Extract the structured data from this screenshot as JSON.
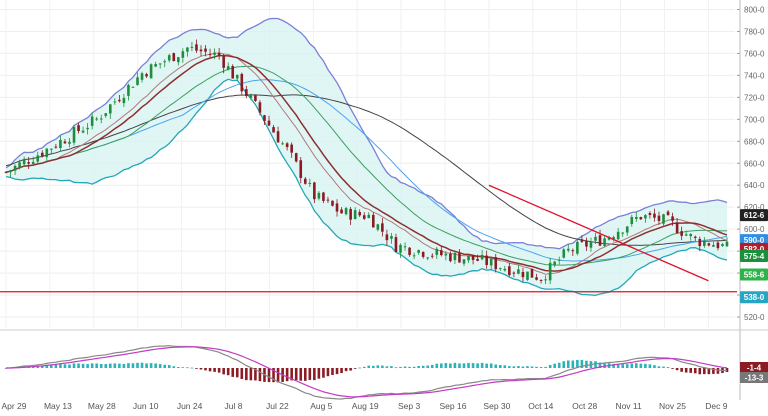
{
  "chart_data": {
    "type": "candlestick",
    "x_ticks": [
      "Apr 29",
      "May 13",
      "May 28",
      "Jun 10",
      "Jun 24",
      "Jul 8",
      "Jul 22",
      "Aug 5",
      "Aug 19",
      "Sep 3",
      "Sep 16",
      "Sep 30",
      "Oct 14",
      "Oct 28",
      "Nov 11",
      "Nov 25",
      "Dec 9"
    ],
    "y_ticks": [
      "800-0",
      "780-0",
      "760-0",
      "740-0",
      "720-0",
      "700-0",
      "680-0",
      "660-0",
      "640-0",
      "620-0",
      "600-0",
      "580-0",
      "560-0",
      "540-0",
      "520-0"
    ],
    "ylim": [
      510,
      805
    ],
    "grid": true,
    "price_labels": [
      {
        "text": "612-6",
        "value": 612.75,
        "color": "#222222"
      },
      {
        "text": "590-0",
        "value": 590.0,
        "color": "#2f8de4"
      },
      {
        "text": "582-0",
        "value": 582.0,
        "color": "#b0202c"
      },
      {
        "text": "575-4",
        "value": 575.5,
        "color": "#1c8f3c"
      },
      {
        "text": "558-6",
        "value": 558.75,
        "color": "#2eb34a"
      },
      {
        "text": "538-0",
        "value": 538.0,
        "color": "#26a6c2"
      }
    ],
    "horizontal_line": {
      "value": 543.0,
      "color": "#e0102c"
    },
    "trendline": {
      "start_date": "Sep 30",
      "start_value": 640.0,
      "end_date": "Dec 9",
      "end_value": 553.0,
      "color": "#e0102c"
    },
    "macd_labels": [
      {
        "text": "-1-4",
        "color": "#8b1c24"
      },
      {
        "text": "-13-3",
        "color": "#777777"
      }
    ],
    "colors": {
      "up": "#1e8e3e",
      "down": "#8b1a22",
      "bollinger": "#7b7fd6",
      "bollinger_fill": "#d6f3f2",
      "ma_long": "#444444",
      "ma_blue": "#4aa3f0",
      "ma_green": "#3aa060",
      "ma_darkred": "#8e2f2f",
      "ma_mauve": "#b07a7a"
    }
  }
}
